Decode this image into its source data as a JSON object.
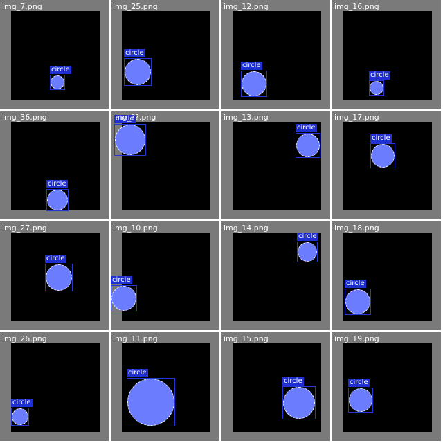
{
  "colors": {
    "tile_bg": "#7a7a7a",
    "canvas_bg": "#000000",
    "circle_fill": "#6b7cff",
    "box_border": "#2436d6",
    "label_bg": "#1f2fd0",
    "text": "#ffffff"
  },
  "tiles": [
    {
      "name": "img_7.png",
      "label": "circle"
    },
    {
      "name": "img_25.png",
      "label": "circle"
    },
    {
      "name": "img_12.png",
      "label": "circle"
    },
    {
      "name": "img_16.png",
      "label": "circle"
    },
    {
      "name": "img_36.png",
      "label": "circle"
    },
    {
      "name": "img_??.png",
      "label": "circle"
    },
    {
      "name": "img_13.png",
      "label": "circle"
    },
    {
      "name": "img_17.png",
      "label": "circle"
    },
    {
      "name": "img_27.png",
      "label": "circle"
    },
    {
      "name": "img_10.png",
      "label": "circle"
    },
    {
      "name": "img_14.png",
      "label": "circle"
    },
    {
      "name": "img_18.png",
      "label": "circle"
    },
    {
      "name": "img_26.png",
      "label": "circle"
    },
    {
      "name": "img_11.png",
      "label": "circle"
    },
    {
      "name": "img_15.png",
      "label": "circle"
    },
    {
      "name": "img_19.png",
      "label": "circle"
    }
  ]
}
